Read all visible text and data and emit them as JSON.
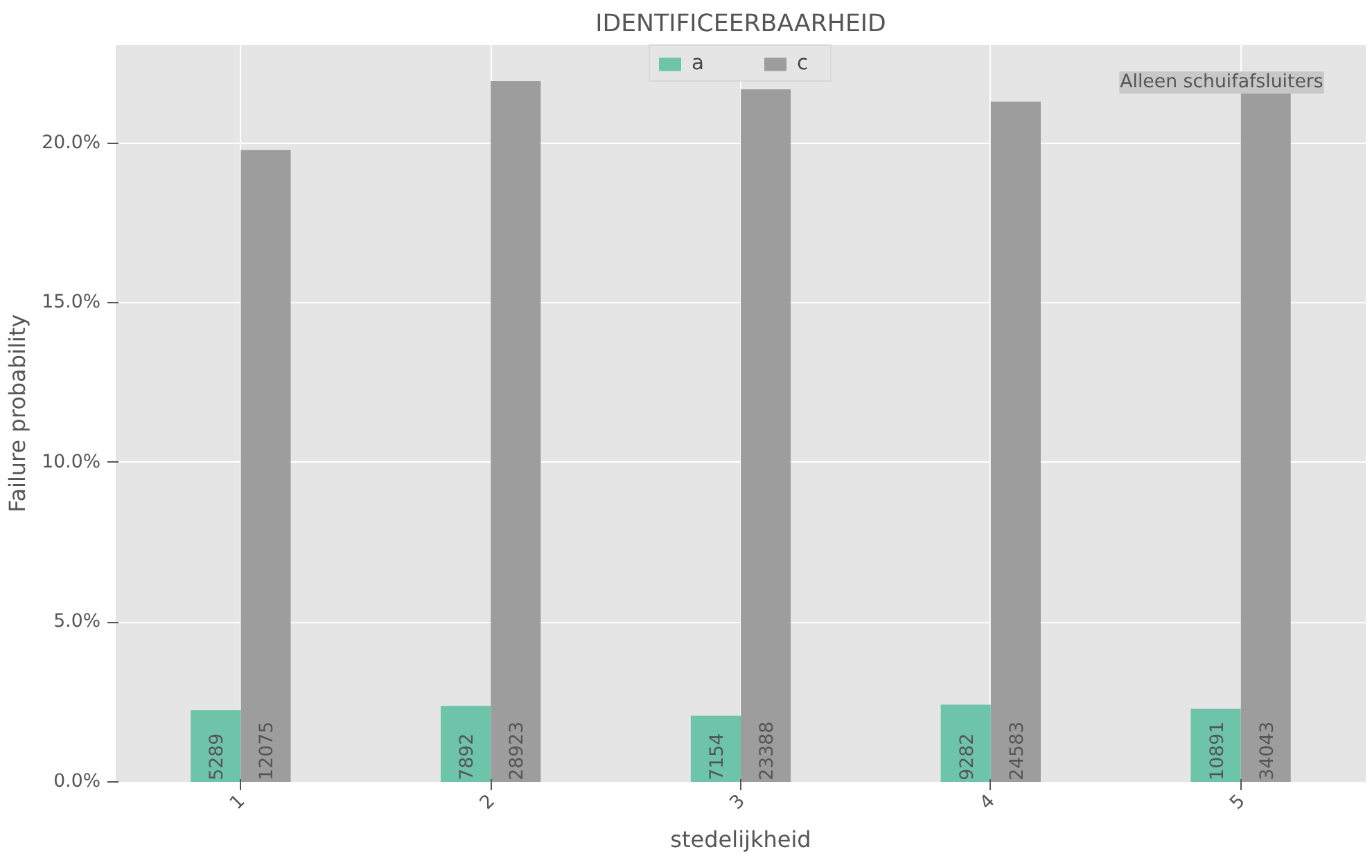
{
  "chart_data": {
    "type": "bar",
    "title": "IDENTIFICEERBAARHEID",
    "xlabel": "stedelijkheid",
    "ylabel": "Failure probability",
    "categories": [
      "1",
      "2",
      "3",
      "4",
      "5"
    ],
    "series": [
      {
        "name": "a",
        "color": "#66c2a5",
        "values": [
          2.25,
          2.38,
          2.07,
          2.42,
          2.29
        ]
      },
      {
        "name": "c",
        "color": "#999999",
        "values": [
          19.78,
          21.94,
          21.68,
          21.3,
          21.55
        ]
      }
    ],
    "ylim": [
      0,
      23.07
    ],
    "yticks": [
      {
        "value": 0,
        "label": "0.0%"
      },
      {
        "value": 5,
        "label": "5.0%"
      },
      {
        "value": 10,
        "label": "10.0%"
      },
      {
        "value": 15,
        "label": "15.0%"
      },
      {
        "value": 20,
        "label": "20.0%"
      }
    ],
    "annotations": [
      "Alleen schuifafsluiters",
      {
        "text": "5289",
        "x": "1",
        "y": 0
      },
      {
        "text": "12075",
        "x": "1",
        "y": 0
      },
      {
        "text": "7892",
        "x": "2",
        "y": 0
      },
      {
        "text": "28923",
        "x": "2",
        "y": 0
      },
      {
        "text": "7154",
        "x": "3",
        "y": 0
      },
      {
        "text": "23388",
        "x": "3",
        "y": 0
      },
      {
        "text": "9282",
        "x": "4",
        "y": 0
      },
      {
        "text": "24583",
        "x": "4",
        "y": 0
      },
      {
        "text": "10891",
        "x": "5",
        "y": 0
      },
      {
        "text": "34043",
        "x": "5",
        "y": 0
      }
    ],
    "grid": true,
    "legend": "top"
  }
}
